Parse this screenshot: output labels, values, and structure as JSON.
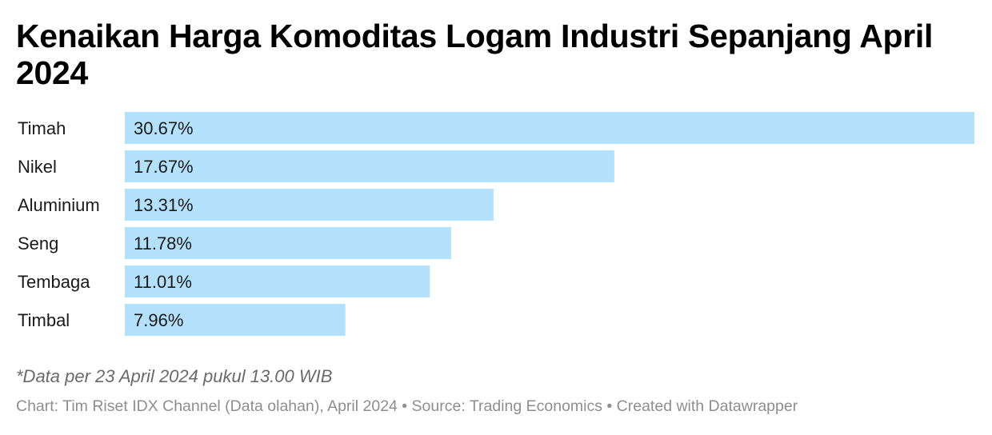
{
  "chart_data": {
    "type": "bar",
    "orientation": "horizontal",
    "title": "Kenaikan Harga Komoditas Logam Industri Sepanjang April 2024",
    "categories": [
      "Timah",
      "Nikel",
      "Aluminium",
      "Seng",
      "Tembaga",
      "Timbal"
    ],
    "values": [
      30.67,
      17.67,
      13.31,
      11.78,
      11.01,
      7.96
    ],
    "value_labels": [
      "30.67%",
      "17.67%",
      "13.31%",
      "11.78%",
      "11.01%",
      "7.96%"
    ],
    "unit": "%",
    "xlim": [
      0,
      30.67
    ],
    "grid": false,
    "bar_color": "#b3e0fb"
  },
  "notes": "*Data per 23 April 2024 pukul 13.00 WIB",
  "footer": "Chart: Tim Riset IDX Channel (Data olahan), April 2024 • Source: Trading Economics • Created with Datawrapper"
}
